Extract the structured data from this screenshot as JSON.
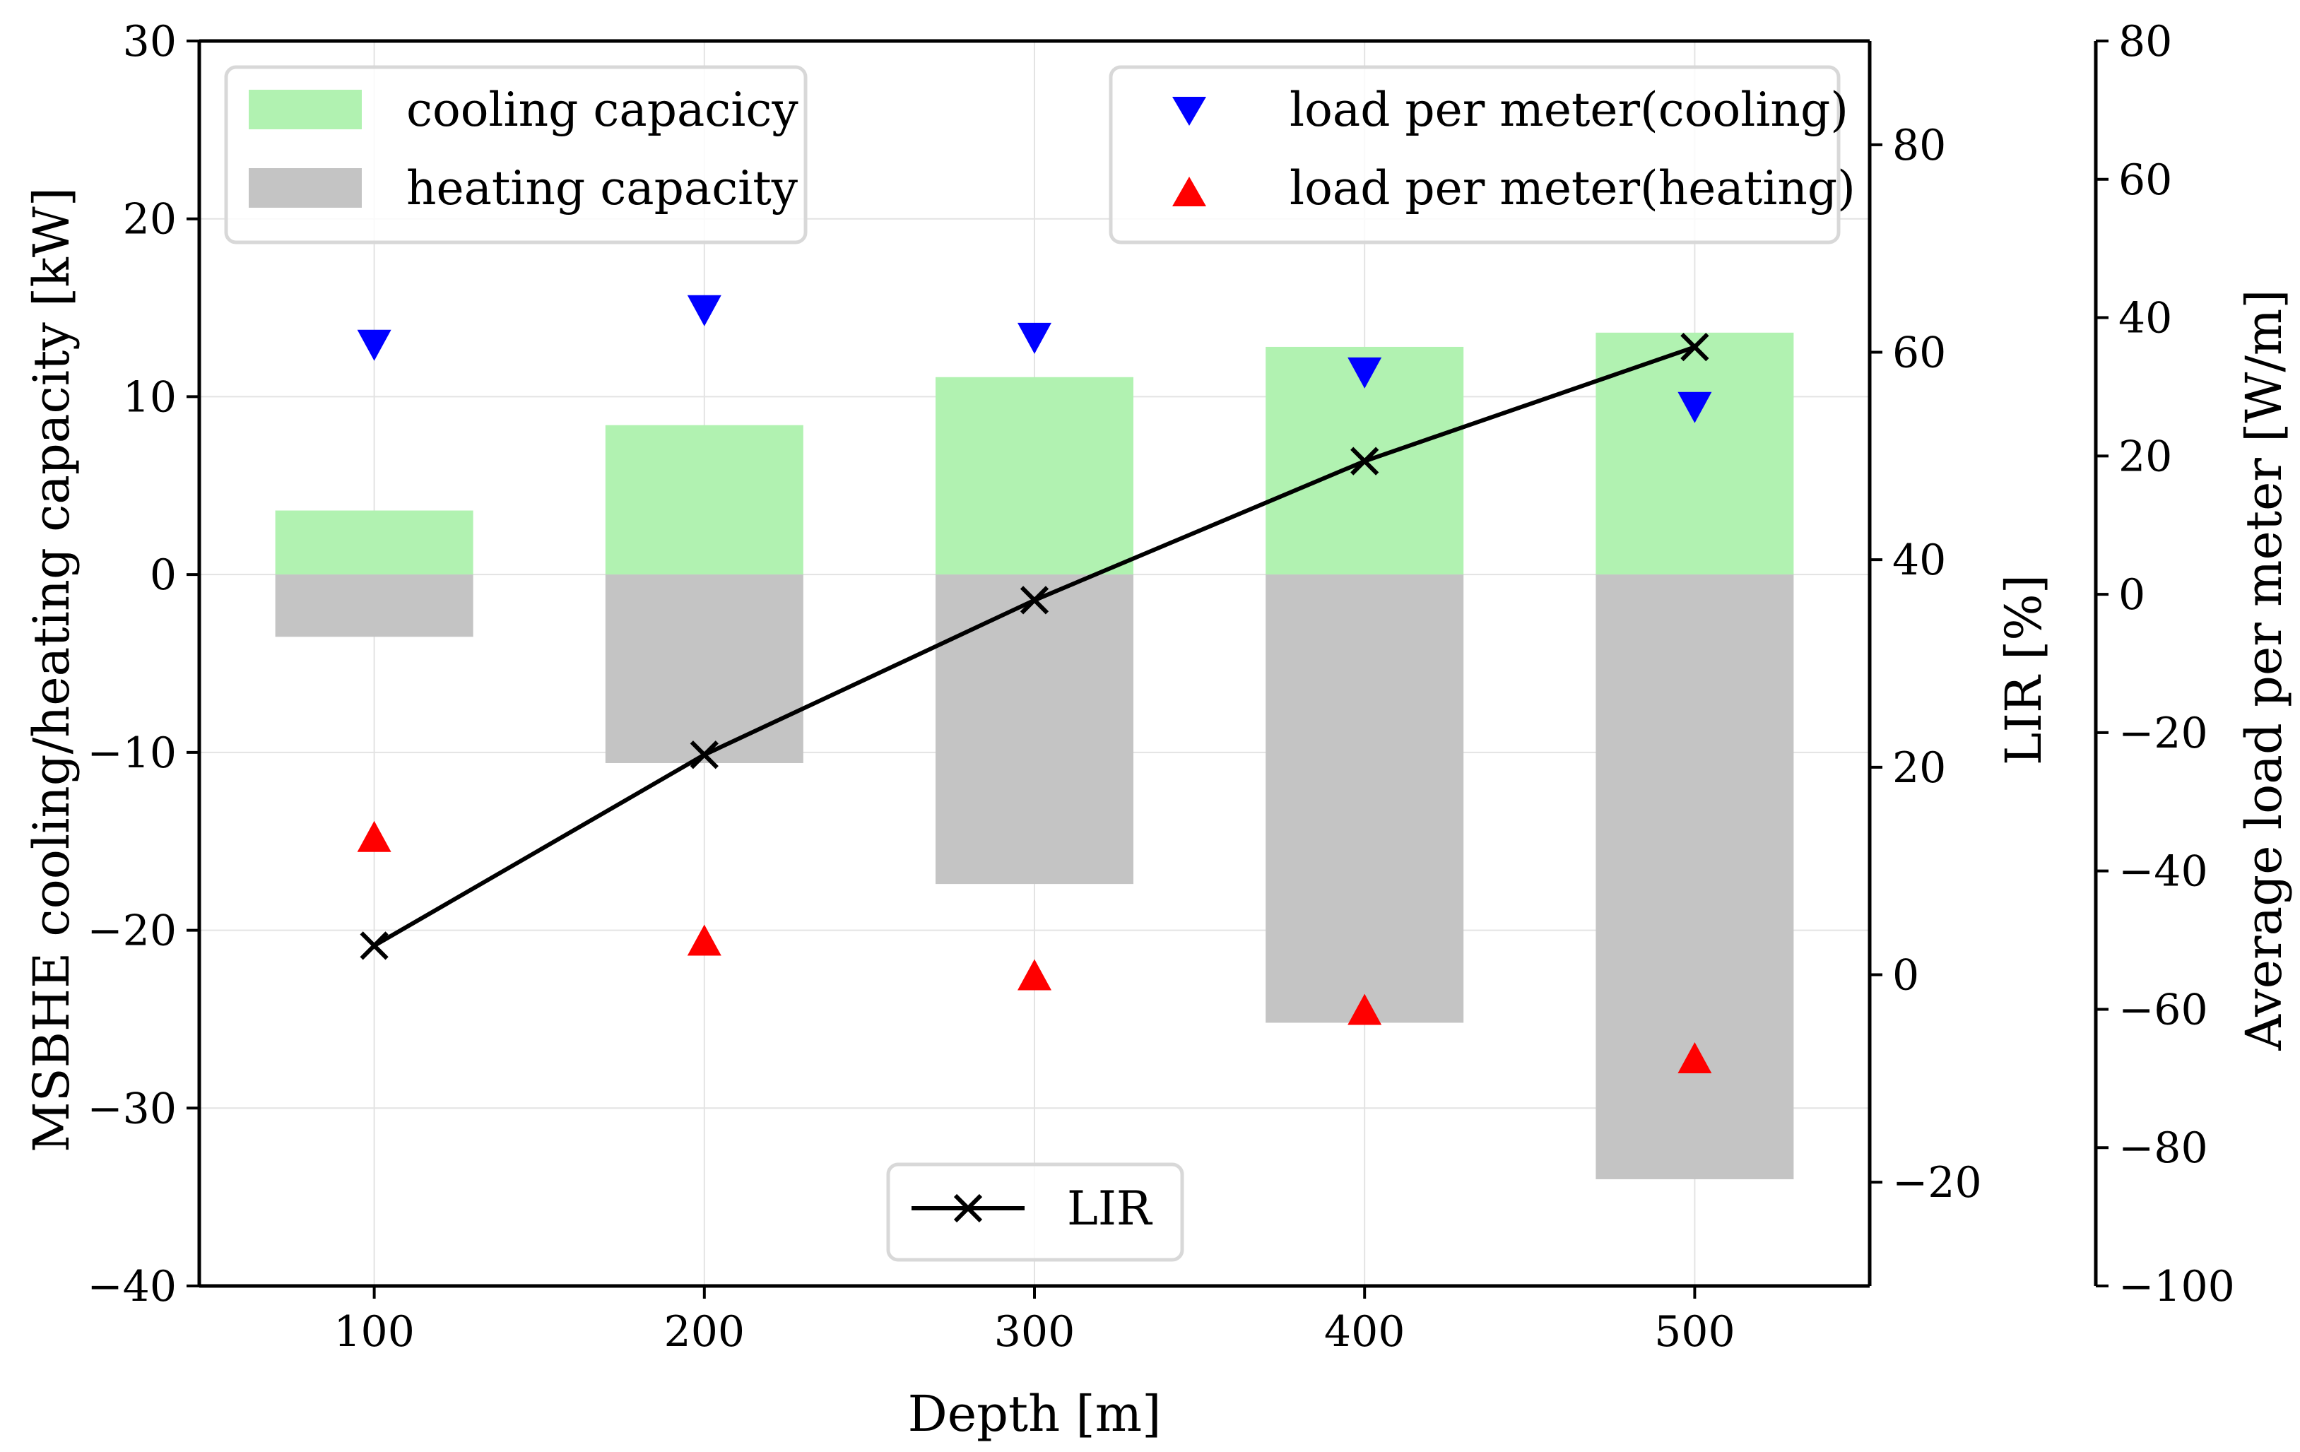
{
  "chart_data": {
    "type": "bar",
    "categories": [
      "100",
      "200",
      "300",
      "400",
      "500"
    ],
    "x": [
      100,
      200,
      300,
      400,
      500
    ],
    "xlabel": "Depth [m]",
    "xlim": [
      47,
      553
    ],
    "xticks": [
      "100",
      "200",
      "300",
      "400",
      "500"
    ],
    "ylabel_left": "MSBHE cooling/heating capacity [kW]",
    "ylim_left": [
      -40,
      30
    ],
    "yticks_left": [
      "−40",
      "−30",
      "−20",
      "−10",
      "0",
      "10",
      "20",
      "30"
    ],
    "ylabel_right": "LIR [%]",
    "ylim_right": [
      -30,
      90
    ],
    "yticks_right": [
      "−20",
      "0",
      "20",
      "40",
      "60",
      "80"
    ],
    "ylabel_right2": "Average load per meter [W/m]",
    "ylim_right2": [
      -100,
      80
    ],
    "yticks_right2": [
      "−100",
      "−80",
      "−60",
      "−40",
      "−20",
      "0",
      "20",
      "40",
      "60",
      "80"
    ],
    "grid": true,
    "series": [
      {
        "name": "cooling capacicy",
        "kind": "bar",
        "axis": "left",
        "color": "#b1f2b1",
        "values": [
          3.6,
          8.4,
          11.1,
          12.8,
          13.6
        ]
      },
      {
        "name": "heating capacity",
        "kind": "bar",
        "axis": "left",
        "color": "#c4c4c4",
        "values": [
          -3.5,
          -10.6,
          -17.4,
          -25.2,
          -34.0
        ]
      },
      {
        "name": "LIR",
        "kind": "line",
        "marker": "x",
        "axis": "right",
        "color": "#000000",
        "values": [
          2.8,
          21.2,
          36.1,
          49.5,
          60.5
        ]
      },
      {
        "name": "load per meter(cooling)",
        "kind": "scatter",
        "marker": "triangle-down",
        "axis": "right2",
        "color": "#0000ff",
        "values": [
          36,
          41,
          37,
          32,
          27
        ]
      },
      {
        "name": "load per meter(heating)",
        "kind": "scatter",
        "marker": "triangle-up",
        "axis": "right2",
        "color": "#ff0000",
        "values": [
          -35,
          -50,
          -55,
          -60,
          -67
        ]
      }
    ],
    "legends": {
      "upper_left": [
        "cooling capacicy",
        "heating capacity"
      ],
      "upper_right": [
        "load per meter(cooling)",
        "load per meter(heating)"
      ],
      "lower_center": [
        "LIR"
      ]
    }
  }
}
